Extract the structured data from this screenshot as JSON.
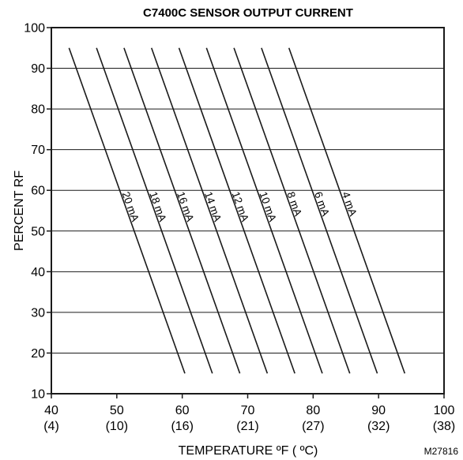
{
  "chart_data": {
    "type": "line",
    "title": "C7400C SENSOR OUTPUT CURRENT",
    "xlabel": "TEMPERATURE ºF ( ºC)",
    "ylabel": "PERCENT RF",
    "xlim": [
      40,
      100
    ],
    "ylim": [
      10,
      100
    ],
    "grid": "horizontal",
    "x_ticks": [
      {
        "value": 40,
        "label": "40",
        "sublabel": "(4)"
      },
      {
        "value": 50,
        "label": "50",
        "sublabel": "(10)"
      },
      {
        "value": 60,
        "label": "60",
        "sublabel": "(16)"
      },
      {
        "value": 70,
        "label": "70",
        "sublabel": "(21)"
      },
      {
        "value": 80,
        "label": "80",
        "sublabel": "(27)"
      },
      {
        "value": 90,
        "label": "90",
        "sublabel": "(32)"
      },
      {
        "value": 100,
        "label": "100",
        "sublabel": "(38)"
      }
    ],
    "y_ticks": [
      10,
      20,
      30,
      40,
      50,
      60,
      70,
      80,
      90,
      100
    ],
    "series": [
      {
        "name": "20 mA",
        "x": [
          42.7,
          60.4
        ],
        "y": [
          95,
          15
        ]
      },
      {
        "name": "18 mA",
        "x": [
          46.9,
          64.6
        ],
        "y": [
          95,
          15
        ]
      },
      {
        "name": "16 mA",
        "x": [
          51.1,
          68.8
        ],
        "y": [
          95,
          15
        ]
      },
      {
        "name": "14 mA",
        "x": [
          55.3,
          73.0
        ],
        "y": [
          95,
          15
        ]
      },
      {
        "name": "12 mA",
        "x": [
          59.5,
          77.2
        ],
        "y": [
          95,
          15
        ]
      },
      {
        "name": "10 mA",
        "x": [
          63.7,
          81.4
        ],
        "y": [
          95,
          15
        ]
      },
      {
        "name": "8 mA",
        "x": [
          67.9,
          85.6
        ],
        "y": [
          95,
          15
        ]
      },
      {
        "name": "6 mA",
        "x": [
          72.1,
          89.8
        ],
        "y": [
          95,
          15
        ]
      },
      {
        "name": "4 mA",
        "x": [
          76.3,
          94.0
        ],
        "y": [
          95,
          15
        ]
      }
    ]
  },
  "figure_code": "M27816",
  "colors": {
    "line": "#1a1a1a",
    "grid": "#1a1a1a",
    "background": "#ffffff"
  }
}
